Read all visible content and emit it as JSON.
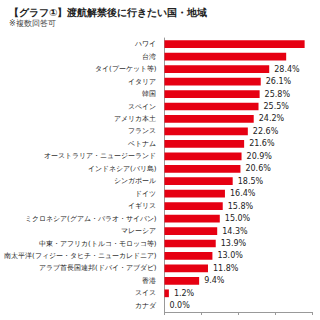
{
  "chart_data": {
    "type": "bar",
    "orientation": "horizontal",
    "title": "【グラフ①】渡航解禁後に行きたい国・地域",
    "subtitle": "※複数回答可",
    "categories": [
      "ハワイ",
      "台湾",
      "タイ(プーケット等)",
      "イタリア",
      "韓国",
      "スペイン",
      "アメリカ本土",
      "フランス",
      "ベトナム",
      "オーストラリア・ニュージーランド",
      "インドネシア(バリ島)",
      "シンガポール",
      "ドイツ",
      "イギリス",
      "ミクロネシア(グアム・パラオ・サイパン)",
      "マレーシア",
      "中東・アフリカ(トルコ・モロッコ等)",
      "南太平洋(フィジー・タヒチ・ニューカレドニア)",
      "アラブ首長国連邦(ドバイ・アブダビ)",
      "香港",
      "スイス",
      "カナダ"
    ],
    "values": [
      38,
      33,
      28.4,
      26.1,
      25.8,
      25.5,
      24.2,
      22.6,
      21.6,
      20.9,
      20.6,
      18.5,
      16.4,
      15.8,
      15.0,
      14.3,
      13.9,
      13.0,
      11.8,
      9.4,
      1.2,
      0.0
    ],
    "value_labels": [
      null,
      null,
      "28.4%",
      "26.1%",
      "25.8%",
      "25.5%",
      "24.2%",
      "22.6%",
      "21.6%",
      "20.9%",
      "20.6%",
      "18.5%",
      "16.4%",
      "15.8%",
      "15.0%",
      "14.3%",
      "13.9%",
      "13.0%",
      "11.8%",
      "9.4%",
      "1.2%",
      "0.0%"
    ],
    "data_labels": true,
    "color": "#e60012",
    "xlim": [
      0,
      40
    ],
    "xticks": [
      0,
      10,
      20,
      30,
      40
    ],
    "grid": false,
    "tick_labels": "y"
  }
}
